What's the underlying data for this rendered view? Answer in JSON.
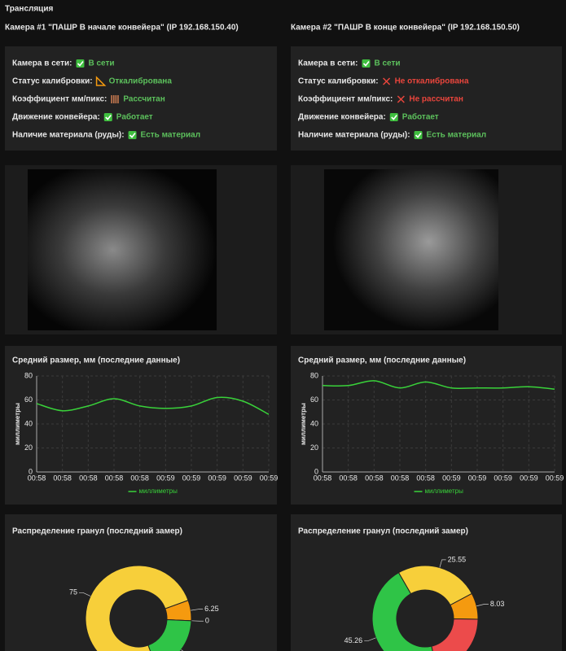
{
  "header": {
    "title": "Трансляция"
  },
  "cameras": [
    {
      "title": "Камера #1 \"ПАШР В начале конвейера\" (IP 192.168.150.40)",
      "status": [
        {
          "label": "Камера в сети:",
          "value": "В сети",
          "icon": "check",
          "color": "#5cc05c"
        },
        {
          "label": "Статус калибровки:",
          "value": "Откалибрована",
          "icon": "ruler",
          "color": "#5cc05c"
        },
        {
          "label": "Коэффициент мм/пикс:",
          "value": "Рассчитан",
          "icon": "abacus",
          "color": "#5cc05c"
        },
        {
          "label": "Движение конвейера:",
          "value": "Работает",
          "icon": "check",
          "color": "#5cc05c"
        },
        {
          "label": "Наличие материала (руды):",
          "value": "Есть материал",
          "icon": "check",
          "color": "#5cc05c"
        }
      ]
    },
    {
      "title": "Камера #2 \"ПАШР В конце конвейера\" (IP 192.168.150.50)",
      "status": [
        {
          "label": "Камера в сети:",
          "value": "В сети",
          "icon": "check",
          "color": "#5cc05c"
        },
        {
          "label": "Статус калибровки:",
          "value": "Не откалибрована",
          "icon": "cross",
          "color": "#e8453c"
        },
        {
          "label": "Коэффициент мм/пикс:",
          "value": "Не рассчитан",
          "icon": "cross",
          "color": "#e8453c"
        },
        {
          "label": "Движение конвейера:",
          "value": "Работает",
          "icon": "check",
          "color": "#5cc05c"
        },
        {
          "label": "Наличие материала (руды):",
          "value": "Есть материал",
          "icon": "check",
          "color": "#5cc05c"
        }
      ]
    }
  ],
  "chart_data": [
    {
      "type": "line",
      "title": "Средний размер, мм (последние данные)",
      "y_label": "миллиметры",
      "categories": [
        "00:58",
        "00:58",
        "00:58",
        "00:58",
        "00:58",
        "00:59",
        "00:59",
        "00:59",
        "00:59",
        "00:59"
      ],
      "series": [
        {
          "name": "миллиметры",
          "color": "#39d23a",
          "values": [
            57,
            51,
            55,
            61,
            55,
            53,
            55,
            62,
            59,
            48
          ]
        }
      ],
      "ylim": [
        0,
        80
      ],
      "yticks": [
        0,
        20,
        40,
        60,
        80
      ],
      "grid": true
    },
    {
      "type": "line",
      "title": "Средний размер, мм (последние данные)",
      "y_label": "миллиметры",
      "categories": [
        "00:58",
        "00:58",
        "00:58",
        "00:58",
        "00:58",
        "00:59",
        "00:59",
        "00:59",
        "00:59",
        "00:59"
      ],
      "series": [
        {
          "name": "миллиметры",
          "color": "#39d23a",
          "values": [
            72,
            72,
            76,
            70,
            75,
            70,
            70,
            70,
            71,
            69
          ]
        }
      ],
      "ylim": [
        0,
        80
      ],
      "yticks": [
        0,
        20,
        40,
        60,
        80
      ],
      "grid": true
    },
    {
      "type": "pie",
      "title": "Распределение гранул (последний замер)",
      "values": [
        75,
        6.25,
        0,
        18.75
      ],
      "colors": [
        "#f7cf3a",
        "#f59a0f",
        "#ec4b4b",
        "#2fc447"
      ]
    },
    {
      "type": "pie",
      "title": "Распределение гранул (последний замер)",
      "values": [
        25.55,
        8.03,
        21.17,
        45.26
      ],
      "colors": [
        "#f7cf3a",
        "#f59a0f",
        "#ec4b4b",
        "#2fc447"
      ]
    }
  ]
}
